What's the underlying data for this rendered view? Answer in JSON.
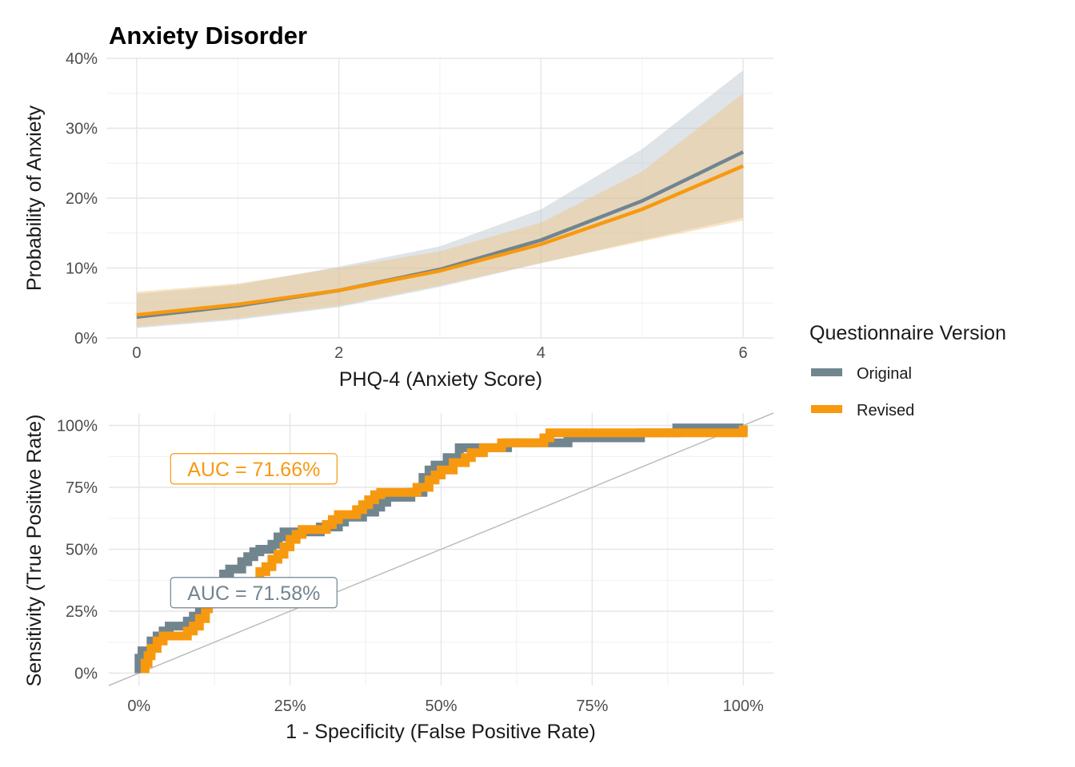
{
  "figure_title": "Anxiety Disorder",
  "legend": {
    "title": "Questionnaire Version",
    "items": [
      {
        "label": "Original",
        "color": "#71858f"
      },
      {
        "label": "Revised",
        "color": "#f7990f"
      }
    ]
  },
  "chart_data": [
    {
      "type": "line",
      "title": "Anxiety Disorder",
      "xlabel": "PHQ-4 (Anxiety Score)",
      "ylabel": "Probability of Anxiety",
      "xlim": [
        -0.3,
        6.3
      ],
      "ylim": [
        0,
        40
      ],
      "x_ticks": [
        0,
        2,
        4,
        6
      ],
      "x_tick_labels": [
        "0",
        "2",
        "4",
        "6"
      ],
      "y_ticks": [
        0,
        10,
        20,
        30,
        40
      ],
      "y_tick_labels": [
        "0%",
        "10%",
        "20%",
        "30%",
        "40%"
      ],
      "grid": true,
      "legend_position": "right",
      "x": [
        0,
        1,
        2,
        3,
        4,
        5,
        6
      ],
      "series": [
        {
          "name": "Original",
          "color": "#71858f",
          "values": [
            3.0,
            4.6,
            6.8,
            9.8,
            14.0,
            19.6,
            26.6
          ],
          "ci_lower": [
            1.4,
            2.6,
            4.4,
            7.3,
            10.7,
            14.0,
            17.2
          ],
          "ci_upper": [
            6.3,
            7.6,
            10.2,
            13.1,
            18.4,
            27.0,
            38.3
          ]
        },
        {
          "name": "Revised",
          "color": "#f7990f",
          "values": [
            3.3,
            4.8,
            6.8,
            9.6,
            13.4,
            18.4,
            24.6
          ],
          "ci_lower": [
            1.6,
            2.8,
            4.6,
            7.5,
            10.7,
            13.8,
            16.8
          ],
          "ci_upper": [
            6.6,
            7.8,
            10.0,
            12.4,
            16.5,
            23.8,
            35.0
          ]
        }
      ]
    },
    {
      "type": "line",
      "xlabel": "1 - Specificity (False Positive Rate)",
      "ylabel": "Sensitivity (True Positive Rate)",
      "xlim": [
        -5,
        105
      ],
      "ylim": [
        -5,
        105
      ],
      "x_ticks": [
        0,
        25,
        50,
        75,
        100
      ],
      "x_tick_labels": [
        "0%",
        "25%",
        "50%",
        "75%",
        "100%"
      ],
      "y_ticks": [
        0,
        25,
        50,
        75,
        100
      ],
      "y_tick_labels": [
        "0%",
        "25%",
        "50%",
        "75%",
        "100%"
      ],
      "grid": true,
      "reference_line": {
        "slope": 1,
        "intercept": 0,
        "color": "#bdbdbd"
      },
      "series": [
        {
          "name": "Original",
          "color": "#71858f",
          "points": [
            [
              0,
              0
            ],
            [
              0,
              6
            ],
            [
              0.5,
              6
            ],
            [
              0.5,
              9
            ],
            [
              2,
              9
            ],
            [
              2,
              13
            ],
            [
              3,
              13
            ],
            [
              3,
              15
            ],
            [
              4,
              15
            ],
            [
              4,
              17
            ],
            [
              5,
              17
            ],
            [
              5,
              19
            ],
            [
              8,
              19
            ],
            [
              8,
              21
            ],
            [
              9,
              21
            ],
            [
              9,
              23
            ],
            [
              10,
              23
            ],
            [
              10,
              26
            ],
            [
              10.5,
              26
            ],
            [
              10.5,
              28
            ],
            [
              12,
              28
            ],
            [
              12,
              32
            ],
            [
              13,
              32
            ],
            [
              13,
              36
            ],
            [
              14,
              36
            ],
            [
              14,
              40
            ],
            [
              15,
              40
            ],
            [
              15,
              42
            ],
            [
              17,
              42
            ],
            [
              17,
              45
            ],
            [
              18,
              45
            ],
            [
              18,
              47
            ],
            [
              19,
              47
            ],
            [
              19,
              49
            ],
            [
              20,
              49
            ],
            [
              20,
              50
            ],
            [
              22,
              50
            ],
            [
              22,
              52
            ],
            [
              23,
              52
            ],
            [
              23,
              55
            ],
            [
              24,
              55
            ],
            [
              24,
              57
            ],
            [
              30,
              57
            ],
            [
              30,
              59
            ],
            [
              33,
              59
            ],
            [
              33,
              61
            ],
            [
              34,
              61
            ],
            [
              34,
              63
            ],
            [
              37,
              63
            ],
            [
              37,
              65
            ],
            [
              39,
              65
            ],
            [
              39,
              67
            ],
            [
              40,
              67
            ],
            [
              40,
              69
            ],
            [
              41,
              69
            ],
            [
              41,
              71
            ],
            [
              45,
              71
            ],
            [
              45,
              73
            ],
            [
              47,
              73
            ],
            [
              47,
              79
            ],
            [
              48,
              79
            ],
            [
              48,
              82
            ],
            [
              49,
              82
            ],
            [
              49,
              84
            ],
            [
              51,
              84
            ],
            [
              51,
              87
            ],
            [
              53,
              87
            ],
            [
              53,
              91
            ],
            [
              61,
              91
            ],
            [
              61,
              93
            ],
            [
              71,
              93
            ],
            [
              71,
              95
            ],
            [
              83,
              95
            ],
            [
              83,
              97
            ],
            [
              89,
              97
            ],
            [
              89,
              99
            ],
            [
              100,
              99
            ],
            [
              100,
              100
            ]
          ]
        },
        {
          "name": "Revised",
          "color": "#f7990f",
          "points": [
            [
              1,
              0
            ],
            [
              1,
              4
            ],
            [
              1.5,
              4
            ],
            [
              1.5,
              7
            ],
            [
              2,
              7
            ],
            [
              2,
              10
            ],
            [
              3,
              10
            ],
            [
              3,
              13
            ],
            [
              4,
              13
            ],
            [
              4,
              15
            ],
            [
              8,
              15
            ],
            [
              8,
              17
            ],
            [
              9,
              17
            ],
            [
              9,
              19
            ],
            [
              10,
              19
            ],
            [
              10,
              22
            ],
            [
              11,
              22
            ],
            [
              11,
              26
            ],
            [
              11.5,
              26
            ],
            [
              11.5,
              28
            ],
            [
              20,
              28
            ],
            [
              20,
              41
            ],
            [
              21,
              41
            ],
            [
              21,
              43
            ],
            [
              22,
              43
            ],
            [
              22,
              46
            ],
            [
              23,
              46
            ],
            [
              23,
              48
            ],
            [
              24,
              48
            ],
            [
              24,
              51
            ],
            [
              25,
              51
            ],
            [
              25,
              54
            ],
            [
              26,
              54
            ],
            [
              26,
              56
            ],
            [
              27,
              56
            ],
            [
              27,
              58
            ],
            [
              31,
              58
            ],
            [
              31,
              60
            ],
            [
              32,
              60
            ],
            [
              32,
              62
            ],
            [
              33,
              62
            ],
            [
              33,
              64
            ],
            [
              36,
              64
            ],
            [
              36,
              66
            ],
            [
              37,
              66
            ],
            [
              37,
              68
            ],
            [
              38,
              68
            ],
            [
              38,
              70
            ],
            [
              39,
              70
            ],
            [
              39,
              72
            ],
            [
              40,
              72
            ],
            [
              40,
              73
            ],
            [
              46,
              73
            ],
            [
              46,
              75
            ],
            [
              48,
              75
            ],
            [
              48,
              78
            ],
            [
              49,
              78
            ],
            [
              49,
              80
            ],
            [
              50,
              80
            ],
            [
              50,
              82
            ],
            [
              52,
              82
            ],
            [
              52,
              85
            ],
            [
              54,
              85
            ],
            [
              54,
              87
            ],
            [
              55,
              87
            ],
            [
              55,
              89
            ],
            [
              57,
              89
            ],
            [
              57,
              91
            ],
            [
              60,
              91
            ],
            [
              60,
              93
            ],
            [
              67,
              93
            ],
            [
              67,
              95
            ],
            [
              68,
              95
            ],
            [
              68,
              97
            ],
            [
              100,
              97
            ],
            [
              100,
              100
            ]
          ]
        }
      ],
      "annotations": [
        {
          "text": "AUC = 71.66%",
          "series": "Revised",
          "color": "#f7990f",
          "x": 19,
          "y": 82.5
        },
        {
          "text": "AUC = 71.58%",
          "series": "Original",
          "color": "#71858f",
          "x": 19,
          "y": 32.5
        }
      ]
    }
  ]
}
